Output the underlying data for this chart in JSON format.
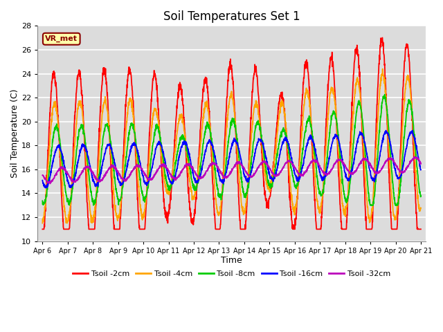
{
  "title": "Soil Temperatures Set 1",
  "xlabel": "Time",
  "ylabel": "Soil Temperature (C)",
  "ylim": [
    10,
    28
  ],
  "yticks": [
    10,
    12,
    14,
    16,
    18,
    20,
    22,
    24,
    26,
    28
  ],
  "x_labels": [
    "Apr 6",
    "Apr 7",
    "Apr 8",
    "Apr 9",
    "Apr 10",
    "Apr 11",
    "Apr 12",
    "Apr 13",
    "Apr 14",
    "Apr 15",
    "Apr 16",
    "Apr 17",
    "Apr 18",
    "Apr 19",
    "Apr 20",
    "Apr 21"
  ],
  "annotation_text": "VR_met",
  "series": [
    {
      "label": "Tsoil -2cm",
      "color": "#FF0000"
    },
    {
      "label": "Tsoil -4cm",
      "color": "#FFA500"
    },
    {
      "label": "Tsoil -8cm",
      "color": "#00CC00"
    },
    {
      "label": "Tsoil -16cm",
      "color": "#0000FF"
    },
    {
      "label": "Tsoil -32cm",
      "color": "#BB00BB"
    }
  ],
  "background_color": "#DCDCDC",
  "grid_color": "#FFFFFF",
  "title_fontsize": 12,
  "label_fontsize": 9,
  "tick_fontsize": 8
}
